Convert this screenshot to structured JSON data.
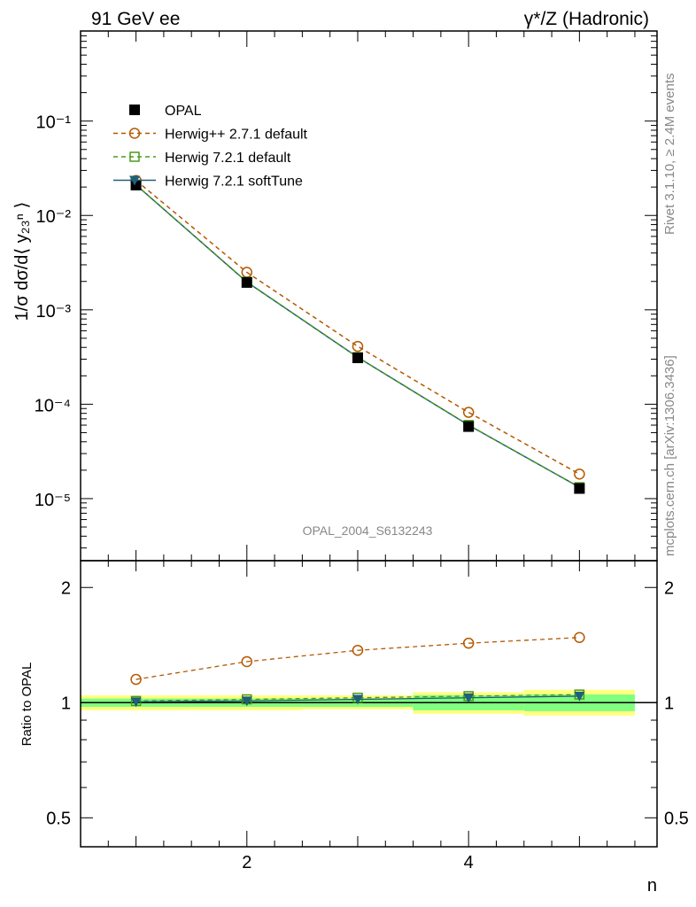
{
  "header": {
    "left_title": "91 GeV ee",
    "right_title": "γ*/Z (Hadronic)"
  },
  "side_labels": {
    "rivet": "Rivet 3.1.10, ≥ 2.4M events",
    "mcplots": "mcplots.cern.ch [arXiv:1306.3436]"
  },
  "watermark": "OPAL_2004_S6132243",
  "colors": {
    "opal": "#000000",
    "herwigpp": "#b35900",
    "herwig721_default": "#4d9a1a",
    "herwig721_soft": "#1f5f7a",
    "band_inner": "#80ff80",
    "band_outer": "#ffff80"
  },
  "chart_data": [
    {
      "type": "line",
      "panel": "main",
      "ylabel": "1/σ dσ/d⟨ y₂₃ⁿ ⟩",
      "yscale": "log",
      "ylim": [
        2.2e-06,
        0.9
      ],
      "xlim": [
        0.5,
        5.7
      ],
      "y_tick_labels": [
        "10⁻¹",
        "10⁻²",
        "10⁻³",
        "10⁻⁴",
        "10⁻⁵"
      ],
      "y_tick_values": [
        0.1,
        0.01,
        0.001,
        0.0001,
        1e-05
      ],
      "x": [
        1,
        2,
        3,
        4,
        5
      ],
      "legend_position": "top-left",
      "series": [
        {
          "name": "OPAL",
          "values": [
            0.021,
            0.00195,
            0.00031,
            5.8e-05,
            1.28e-05
          ],
          "style": "square-filled"
        },
        {
          "name": "Herwig++ 2.7.1 default",
          "values": [
            0.0235,
            0.0025,
            0.00041,
            8.2e-05,
            1.82e-05
          ],
          "style": "circle-open-dashed"
        },
        {
          "name": "Herwig 7.2.1 default",
          "values": [
            0.021,
            0.00198,
            0.000315,
            6.02e-05,
            1.32e-05
          ],
          "style": "square-open-dashed"
        },
        {
          "name": "Herwig 7.2.1 softTune",
          "values": [
            0.0211,
            0.00197,
            0.000314,
            6e-05,
            1.32e-05
          ],
          "style": "triangle-solid"
        }
      ]
    },
    {
      "type": "line",
      "panel": "ratio",
      "ylabel": "Ratio to OPAL",
      "xlabel": "n",
      "yscale": "log",
      "ylim": [
        0.42,
        2.35
      ],
      "xlim": [
        0.5,
        5.7
      ],
      "y_tick_labels": [
        "0.5",
        "1",
        "2"
      ],
      "y_tick_values": [
        0.5,
        1,
        2
      ],
      "x_tick_labels": [
        "2",
        "4"
      ],
      "x_tick_values": [
        2,
        4
      ],
      "x": [
        1,
        2,
        3,
        4,
        5
      ],
      "band_inner": {
        "lo": [
          0.975,
          0.975,
          0.975,
          0.955,
          0.95
        ],
        "hi": [
          1.025,
          1.025,
          1.025,
          1.045,
          1.05
        ]
      },
      "band_outer": {
        "lo": [
          0.955,
          0.955,
          0.96,
          0.935,
          0.925
        ],
        "hi": [
          1.045,
          1.045,
          1.045,
          1.065,
          1.08
        ]
      },
      "series": [
        {
          "name": "Herwig++ 2.7.1 default",
          "values": [
            1.15,
            1.28,
            1.37,
            1.43,
            1.48
          ]
        },
        {
          "name": "Herwig 7.2.1 default",
          "values": [
            1.01,
            1.02,
            1.03,
            1.04,
            1.05
          ]
        },
        {
          "name": "Herwig 7.2.1 softTune",
          "values": [
            1.005,
            1.01,
            1.02,
            1.03,
            1.04
          ]
        }
      ]
    }
  ]
}
